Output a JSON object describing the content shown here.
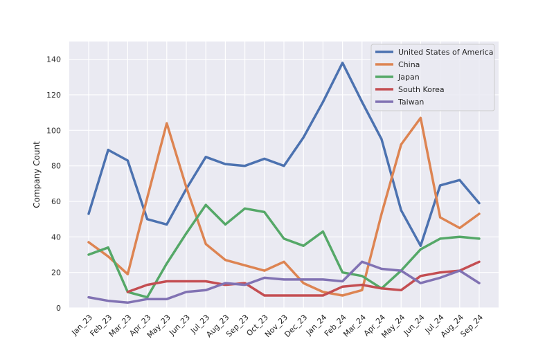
{
  "chart_data": {
    "type": "line",
    "title": "",
    "xlabel": "",
    "ylabel": "Company Count",
    "ylim": [
      0,
      150
    ],
    "yticks": [
      0,
      20,
      40,
      60,
      80,
      100,
      120,
      140
    ],
    "grid": true,
    "legend_position": "top-right",
    "categories": [
      "Jan_23",
      "Feb_23",
      "Mar_23",
      "Apr_23",
      "May_23",
      "Jun_23",
      "Jul_23",
      "Aug_23",
      "Sep_23",
      "Oct_23",
      "Nov_23",
      "Dec_23",
      "Jan_24",
      "Feb_24",
      "Mar_24",
      "Apr_24",
      "May_24",
      "Jun_24",
      "Jul_24",
      "Aug_24",
      "Sep_24"
    ],
    "series": [
      {
        "name": "United States of America",
        "color": "#4c72b0",
        "values": [
          53,
          89,
          83,
          50,
          47,
          67,
          85,
          81,
          80,
          84,
          80,
          96,
          116,
          138,
          116,
          95,
          55,
          35,
          69,
          72,
          59
        ]
      },
      {
        "name": "China",
        "color": "#dd8452",
        "values": [
          37,
          29,
          19,
          62,
          104,
          68,
          36,
          27,
          24,
          21,
          26,
          14,
          9,
          7,
          10,
          53,
          92,
          107,
          51,
          45,
          53
        ]
      },
      {
        "name": "Japan",
        "color": "#55a868",
        "values": [
          30,
          34,
          9,
          6,
          25,
          42,
          58,
          47,
          56,
          54,
          39,
          35,
          43,
          20,
          18,
          11,
          21,
          33,
          39,
          40,
          39
        ]
      },
      {
        "name": "South Korea",
        "color": "#c44e52",
        "values": [
          null,
          null,
          9,
          13,
          15,
          15,
          15,
          13,
          14,
          7,
          7,
          7,
          7,
          12,
          13,
          11,
          10,
          18,
          20,
          21,
          26
        ]
      },
      {
        "name": "Taiwan",
        "color": "#8172b3",
        "values": [
          6,
          4,
          3,
          5,
          5,
          9,
          10,
          14,
          13,
          17,
          16,
          16,
          16,
          15,
          26,
          22,
          21,
          14,
          17,
          21,
          14
        ]
      }
    ]
  }
}
